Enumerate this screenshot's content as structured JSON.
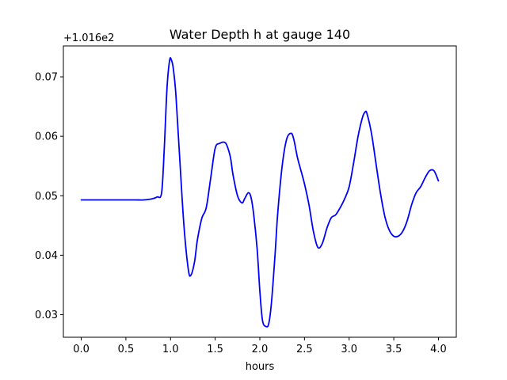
{
  "chart_data": {
    "type": "line",
    "title": "Water Depth h at gauge 140",
    "xlabel": "hours",
    "ylabel": "",
    "y_offset_label": "+1.016e2",
    "y_offset": 101.6,
    "xlim": [
      -0.2,
      4.2
    ],
    "ylim": [
      0.0262,
      0.0752
    ],
    "xticks": [
      0.0,
      0.5,
      1.0,
      1.5,
      2.0,
      2.5,
      3.0,
      3.5,
      4.0
    ],
    "xtick_labels": [
      "0.0",
      "0.5",
      "1.0",
      "1.5",
      "2.0",
      "2.5",
      "3.0",
      "3.5",
      "4.0"
    ],
    "yticks": [
      0.03,
      0.04,
      0.05,
      0.06,
      0.07
    ],
    "ytick_labels": [
      "0.03",
      "0.04",
      "0.05",
      "0.06",
      "0.07"
    ],
    "grid": false,
    "line_color": "#0000ff",
    "series": [
      {
        "x": [
          0.0,
          0.2,
          0.4,
          0.6,
          0.7,
          0.8,
          0.85,
          0.9,
          0.93,
          0.96,
          0.99,
          1.01,
          1.03,
          1.06,
          1.1,
          1.15,
          1.2,
          1.23,
          1.27,
          1.3,
          1.35,
          1.4,
          1.45,
          1.5,
          1.55,
          1.6,
          1.63,
          1.67,
          1.7,
          1.75,
          1.8,
          1.83,
          1.87,
          1.9,
          1.93,
          1.97,
          2.0,
          2.03,
          2.07,
          2.1,
          2.13,
          2.17,
          2.2,
          2.25,
          2.3,
          2.35,
          2.38,
          2.42,
          2.45,
          2.5,
          2.55,
          2.6,
          2.65,
          2.7,
          2.75,
          2.8,
          2.85,
          2.9,
          2.95,
          3.0,
          3.05,
          3.1,
          3.15,
          3.18,
          3.2,
          3.25,
          3.3,
          3.35,
          3.4,
          3.45,
          3.5,
          3.55,
          3.6,
          3.65,
          3.7,
          3.75,
          3.8,
          3.85,
          3.9,
          3.95,
          4.0
        ],
        "y": [
          0.0493,
          0.0493,
          0.0493,
          0.0493,
          0.0493,
          0.0495,
          0.0498,
          0.0505,
          0.058,
          0.068,
          0.0728,
          0.0728,
          0.0715,
          0.067,
          0.057,
          0.045,
          0.0375,
          0.0367,
          0.039,
          0.0425,
          0.0462,
          0.048,
          0.053,
          0.058,
          0.0588,
          0.059,
          0.0585,
          0.0565,
          0.0535,
          0.05,
          0.0488,
          0.0495,
          0.0505,
          0.0498,
          0.047,
          0.041,
          0.034,
          0.029,
          0.028,
          0.0285,
          0.032,
          0.04,
          0.047,
          0.055,
          0.0595,
          0.0605,
          0.0595,
          0.0565,
          0.0548,
          0.052,
          0.0485,
          0.044,
          0.0413,
          0.042,
          0.0445,
          0.0463,
          0.0468,
          0.048,
          0.0495,
          0.0515,
          0.0555,
          0.06,
          0.0632,
          0.0641,
          0.0638,
          0.0605,
          0.0555,
          0.0505,
          0.0465,
          0.0442,
          0.0432,
          0.0432,
          0.044,
          0.0458,
          0.0485,
          0.0505,
          0.0515,
          0.053,
          0.0542,
          0.0542,
          0.0525
        ]
      }
    ]
  }
}
